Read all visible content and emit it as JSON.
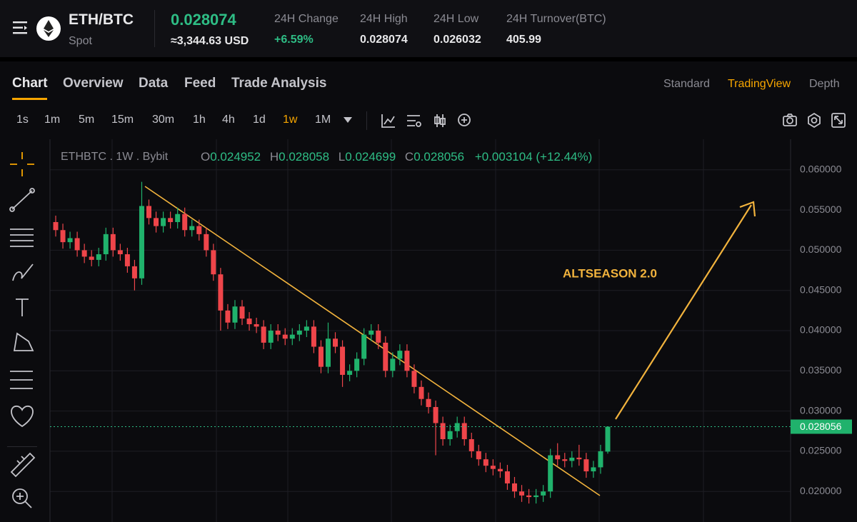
{
  "header": {
    "pair": "ETH/BTC",
    "market": "Spot",
    "price": 0.028074,
    "price_usd": "≈3,344.63 USD",
    "stats": [
      {
        "label": "24H Change",
        "value": "+6.59%"
      },
      {
        "label": "24H High",
        "value": 0.028074
      },
      {
        "label": "24H Low",
        "value": 0.026032
      },
      {
        "label": "24H Turnover(BTC)",
        "value": 405.99
      }
    ]
  },
  "tabs": [
    "Chart",
    "Overview",
    "Data",
    "Feed",
    "Trade Analysis"
  ],
  "views": [
    "Standard",
    "TradingView",
    "Depth"
  ],
  "intervals": [
    "1s",
    "1m",
    "5m",
    "15m",
    "30m",
    "1h",
    "4h",
    "1d",
    "1w",
    "1M"
  ],
  "chart_data": {
    "type": "candlestick",
    "legend": {
      "symbol": "ETHBTC . 1W . Bybit",
      "o": "O",
      "o_value": 0.024952,
      "h": "H",
      "h_value": 0.028058,
      "l": "L",
      "l_value": 0.024699,
      "c": "C",
      "c_value": 0.028056,
      "change": "+0.003104 (+12.44%)"
    },
    "annotation": "ALTSEASON 2.0",
    "last_price": 0.028056,
    "up_color": "#20b26c",
    "down_color": "#ef454a",
    "ylim": [
      0.0162,
      0.0638
    ],
    "yticks": [
      {
        "value": 0.02,
        "label": "0.020000"
      },
      {
        "value": 0.025,
        "label": "0.025000"
      },
      {
        "value": 0.03,
        "label": "0.030000"
      },
      {
        "value": 0.035,
        "label": "0.035000"
      },
      {
        "value": 0.04,
        "label": "0.040000"
      },
      {
        "value": 0.045,
        "label": "0.045000"
      },
      {
        "value": 0.05,
        "label": "0.050000"
      },
      {
        "value": 0.055,
        "label": "0.055000"
      },
      {
        "value": 0.06,
        "label": "0.060000"
      }
    ],
    "grid": true,
    "open": [
      0.0535,
      0.0525,
      0.051,
      0.0515,
      0.05,
      0.0492,
      0.0488,
      0.0495,
      0.052,
      0.05,
      0.0495,
      0.048,
      0.0465,
      0.0555,
      0.054,
      0.053,
      0.054,
      0.0535,
      0.0545,
      0.0525,
      0.053,
      0.052,
      0.05,
      0.047,
      0.0425,
      0.041,
      0.043,
      0.0415,
      0.0408,
      0.0405,
      0.0385,
      0.04,
      0.0395,
      0.039,
      0.0395,
      0.04,
      0.0405,
      0.038,
      0.0355,
      0.039,
      0.038,
      0.0345,
      0.035,
      0.0365,
      0.0395,
      0.04,
      0.0385,
      0.035,
      0.0365,
      0.0375,
      0.035,
      0.033,
      0.0315,
      0.0305,
      0.0285,
      0.0265,
      0.0275,
      0.0285,
      0.0265,
      0.025,
      0.024,
      0.0232,
      0.0228,
      0.0225,
      0.021,
      0.02,
      0.0195,
      0.0193,
      0.0195,
      0.02,
      0.0245,
      0.024,
      0.0238,
      0.0242,
      0.024,
      0.0225,
      0.023,
      0.024952
    ],
    "high": [
      0.0543,
      0.0533,
      0.0523,
      0.0523,
      0.0508,
      0.05,
      0.0503,
      0.0528,
      0.0528,
      0.0508,
      0.0503,
      0.0488,
      0.0585,
      0.0563,
      0.0548,
      0.0548,
      0.0548,
      0.0553,
      0.0553,
      0.0538,
      0.0538,
      0.0528,
      0.0508,
      0.0478,
      0.0433,
      0.0438,
      0.0438,
      0.0423,
      0.0416,
      0.0413,
      0.0408,
      0.0408,
      0.0403,
      0.0403,
      0.0408,
      0.0413,
      0.0413,
      0.0388,
      0.041,
      0.0398,
      0.0388,
      0.0358,
      0.0373,
      0.0403,
      0.0408,
      0.0408,
      0.0393,
      0.0373,
      0.0383,
      0.0383,
      0.0358,
      0.0338,
      0.0323,
      0.0313,
      0.0293,
      0.0283,
      0.0293,
      0.0293,
      0.0273,
      0.0258,
      0.0248,
      0.024,
      0.0236,
      0.0233,
      0.0218,
      0.0208,
      0.0203,
      0.0203,
      0.0208,
      0.0253,
      0.026,
      0.0248,
      0.025,
      0.0258,
      0.0248,
      0.0238,
      0.0258,
      0.028058
    ],
    "low": [
      0.0517,
      0.0502,
      0.0502,
      0.0492,
      0.0484,
      0.048,
      0.048,
      0.0487,
      0.0492,
      0.0487,
      0.0472,
      0.045,
      0.0457,
      0.0532,
      0.0522,
      0.0522,
      0.0527,
      0.0527,
      0.0517,
      0.0517,
      0.0512,
      0.0492,
      0.0462,
      0.04,
      0.0402,
      0.0402,
      0.0407,
      0.04,
      0.0397,
      0.0377,
      0.0377,
      0.0387,
      0.0382,
      0.0382,
      0.0387,
      0.0392,
      0.0372,
      0.0347,
      0.0347,
      0.0372,
      0.033,
      0.0337,
      0.0342,
      0.0357,
      0.0387,
      0.0377,
      0.0342,
      0.0342,
      0.0357,
      0.0342,
      0.0322,
      0.0307,
      0.0297,
      0.0245,
      0.0257,
      0.0257,
      0.0267,
      0.0257,
      0.0242,
      0.0232,
      0.0224,
      0.022,
      0.0217,
      0.0202,
      0.0192,
      0.0187,
      0.0185,
      0.0185,
      0.0187,
      0.0192,
      0.0232,
      0.023,
      0.023,
      0.0232,
      0.0217,
      0.0217,
      0.0222,
      0.024699
    ],
    "close": [
      0.0525,
      0.051,
      0.0515,
      0.05,
      0.0492,
      0.0488,
      0.0495,
      0.052,
      0.05,
      0.0495,
      0.048,
      0.0465,
      0.0555,
      0.054,
      0.053,
      0.054,
      0.0535,
      0.0545,
      0.0525,
      0.053,
      0.052,
      0.05,
      0.047,
      0.0425,
      0.041,
      0.043,
      0.0415,
      0.0408,
      0.0405,
      0.0385,
      0.04,
      0.0395,
      0.039,
      0.0395,
      0.04,
      0.0405,
      0.038,
      0.0355,
      0.039,
      0.038,
      0.0345,
      0.035,
      0.0365,
      0.0395,
      0.04,
      0.0385,
      0.035,
      0.0365,
      0.0375,
      0.035,
      0.033,
      0.0315,
      0.0305,
      0.0285,
      0.0265,
      0.0275,
      0.0285,
      0.0265,
      0.025,
      0.024,
      0.0232,
      0.0228,
      0.0225,
      0.021,
      0.02,
      0.0195,
      0.0193,
      0.0195,
      0.02,
      0.0245,
      0.024,
      0.0238,
      0.0242,
      0.024,
      0.0225,
      0.023,
      0.025,
      0.028056
    ]
  }
}
